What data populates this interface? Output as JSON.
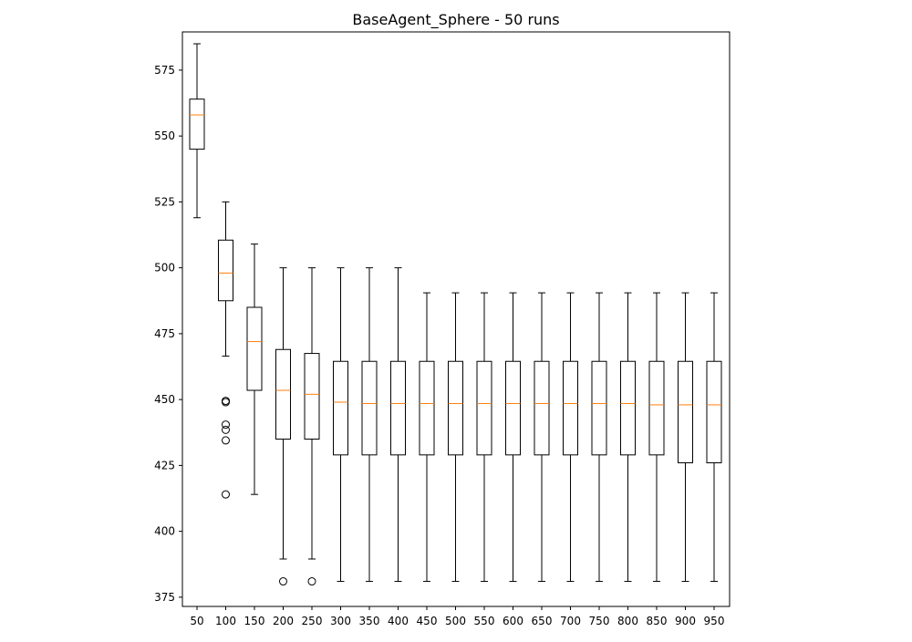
{
  "chart_data": {
    "type": "box",
    "title": "BaseAgent_Sphere - 50 runs",
    "xlabel": "",
    "ylabel": "",
    "ylim": [
      371.5,
      589.5
    ],
    "yticks": [
      375,
      400,
      425,
      450,
      475,
      500,
      525,
      550,
      575
    ],
    "grid": false,
    "colors": {
      "box": "#000000",
      "median": "#ff7f0e",
      "background": "#ffffff"
    },
    "categories": [
      "50",
      "100",
      "150",
      "200",
      "250",
      "300",
      "350",
      "400",
      "450",
      "500",
      "550",
      "600",
      "650",
      "700",
      "750",
      "800",
      "850",
      "900",
      "950"
    ],
    "boxes": [
      {
        "label": "50",
        "whislo": 519,
        "q1": 545,
        "med": 558,
        "q3": 564,
        "whishi": 585,
        "fliers": []
      },
      {
        "label": "100",
        "whislo": 466.5,
        "q1": 487.5,
        "med": 498,
        "q3": 510.5,
        "whishi": 525,
        "fliers": [
          449.5,
          449,
          440.5,
          438.5,
          434.5,
          414
        ]
      },
      {
        "label": "150",
        "whislo": 414,
        "q1": 453.5,
        "med": 472,
        "q3": 485,
        "whishi": 509,
        "fliers": []
      },
      {
        "label": "200",
        "whislo": 389.5,
        "q1": 435,
        "med": 453.5,
        "q3": 469,
        "whishi": 500,
        "fliers": [
          381
        ]
      },
      {
        "label": "250",
        "whislo": 389.5,
        "q1": 435,
        "med": 452,
        "q3": 467.5,
        "whishi": 500,
        "fliers": [
          381
        ]
      },
      {
        "label": "300",
        "whislo": 381,
        "q1": 429,
        "med": 449,
        "q3": 464.5,
        "whishi": 500,
        "fliers": []
      },
      {
        "label": "350",
        "whislo": 381,
        "q1": 429,
        "med": 448.5,
        "q3": 464.5,
        "whishi": 500,
        "fliers": []
      },
      {
        "label": "400",
        "whislo": 381,
        "q1": 429,
        "med": 448.5,
        "q3": 464.5,
        "whishi": 500,
        "fliers": []
      },
      {
        "label": "450",
        "whislo": 381,
        "q1": 429,
        "med": 448.5,
        "q3": 464.5,
        "whishi": 490.5,
        "fliers": []
      },
      {
        "label": "500",
        "whislo": 381,
        "q1": 429,
        "med": 448.5,
        "q3": 464.5,
        "whishi": 490.5,
        "fliers": []
      },
      {
        "label": "550",
        "whislo": 381,
        "q1": 429,
        "med": 448.5,
        "q3": 464.5,
        "whishi": 490.5,
        "fliers": []
      },
      {
        "label": "600",
        "whislo": 381,
        "q1": 429,
        "med": 448.5,
        "q3": 464.5,
        "whishi": 490.5,
        "fliers": []
      },
      {
        "label": "650",
        "whislo": 381,
        "q1": 429,
        "med": 448.5,
        "q3": 464.5,
        "whishi": 490.5,
        "fliers": []
      },
      {
        "label": "700",
        "whislo": 381,
        "q1": 429,
        "med": 448.5,
        "q3": 464.5,
        "whishi": 490.5,
        "fliers": []
      },
      {
        "label": "750",
        "whislo": 381,
        "q1": 429,
        "med": 448.5,
        "q3": 464.5,
        "whishi": 490.5,
        "fliers": []
      },
      {
        "label": "800",
        "whislo": 381,
        "q1": 429,
        "med": 448.5,
        "q3": 464.5,
        "whishi": 490.5,
        "fliers": []
      },
      {
        "label": "850",
        "whislo": 381,
        "q1": 429,
        "med": 448,
        "q3": 464.5,
        "whishi": 490.5,
        "fliers": []
      },
      {
        "label": "900",
        "whislo": 381,
        "q1": 426,
        "med": 448,
        "q3": 464.5,
        "whishi": 490.5,
        "fliers": []
      },
      {
        "label": "950",
        "whislo": 381,
        "q1": 426,
        "med": 448,
        "q3": 464.5,
        "whishi": 490.5,
        "fliers": []
      }
    ]
  }
}
